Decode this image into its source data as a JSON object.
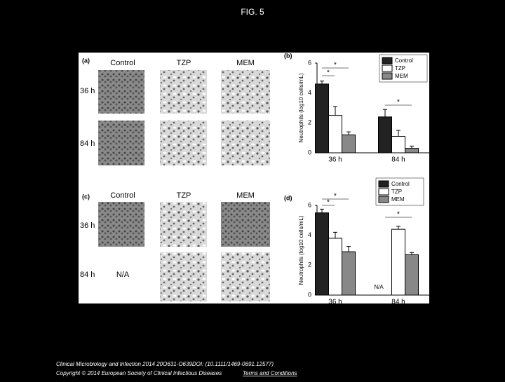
{
  "header": {
    "title": "FIG. 5"
  },
  "figure": {
    "panel_labels": [
      "(a)",
      "(b)",
      "(c)",
      "(d)"
    ],
    "columns": [
      "Control",
      "TZP",
      "MEM"
    ],
    "rows": [
      "36 h",
      "84 h"
    ],
    "missing": "N/A"
  },
  "chart_data": [
    {
      "type": "bar",
      "y_label": "Neutrophils (log10 cells/mL)",
      "categories": [
        "36 h",
        "84 h"
      ],
      "series": [
        {
          "name": "Control",
          "color": "#222222",
          "values": [
            4.6,
            2.4
          ],
          "errors": [
            0.2,
            0.5
          ]
        },
        {
          "name": "TZP",
          "color": "#ffffff",
          "values": [
            2.5,
            1.1
          ],
          "errors": [
            0.6,
            0.4
          ]
        },
        {
          "name": "MEM",
          "color": "#888888",
          "values": [
            1.2,
            0.3
          ],
          "errors": [
            0.2,
            0.15
          ]
        }
      ],
      "ylim": [
        0,
        6
      ],
      "yticks": [
        0,
        2,
        4,
        6
      ],
      "annotations": [
        "*",
        "*",
        "*"
      ]
    },
    {
      "type": "bar",
      "y_label": "Neutrophils (log10 cells/mL)",
      "categories": [
        "36 h",
        "84 h"
      ],
      "series": [
        {
          "name": "Control",
          "color": "#222222",
          "values": [
            5.5,
            null
          ],
          "errors": [
            0.25,
            null
          ]
        },
        {
          "name": "TZP",
          "color": "#ffffff",
          "values": [
            3.8,
            4.4
          ],
          "errors": [
            0.4,
            0.2
          ]
        },
        {
          "name": "MEM",
          "color": "#888888",
          "values": [
            2.9,
            2.7
          ],
          "errors": [
            0.35,
            0.15
          ]
        }
      ],
      "ylim": [
        0,
        6
      ],
      "yticks": [
        0,
        2,
        4,
        6
      ],
      "annotations": [
        "*",
        "*",
        "*",
        "N/A"
      ]
    }
  ],
  "footer": {
    "citation": "Clinical Microbiology and Infection 2014 20O631-O639DOI: (10.1111/1469-0691.12577)",
    "copyright": "Copyright © 2014 European Society of Clinical Infectious Diseases",
    "link": "Terms and Conditions"
  }
}
